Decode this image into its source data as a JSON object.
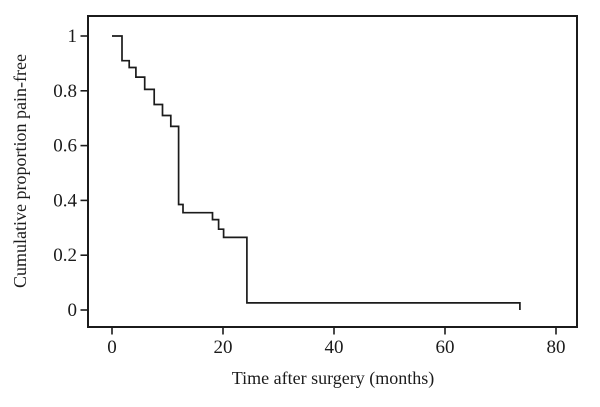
{
  "figure": {
    "background": "#ffffff",
    "line_color": "#1b1b1b",
    "text_color": "#1b1b1b"
  },
  "chart_data": {
    "type": "line",
    "subtype": "kaplan-meier-step",
    "title": "",
    "xlabel": "Time after surgery (months)",
    "ylabel": "Cumulative proportion pain-free",
    "xlim": [
      -4.3,
      83.8
    ],
    "ylim": [
      -0.06,
      1.07
    ],
    "grid": false,
    "legend": null,
    "x_ticks": [
      0,
      20,
      40,
      60,
      80
    ],
    "x_tick_labels": [
      "0",
      "20",
      "40",
      "60",
      "80"
    ],
    "y_ticks": [
      0,
      0.2,
      0.4,
      0.6,
      0.8,
      1
    ],
    "y_tick_labels": [
      "0",
      "0.2",
      "0.4",
      "0.6",
      "0.8",
      "1"
    ],
    "series": [
      {
        "name": "cumulative-proportion-pain-free",
        "start": {
          "t": 0,
          "v": 1.0
        },
        "steps": [
          [
            1.8,
            0.91
          ],
          [
            3.1,
            0.885
          ],
          [
            4.3,
            0.85
          ],
          [
            5.9,
            0.805
          ],
          [
            7.6,
            0.75
          ],
          [
            9.1,
            0.71
          ],
          [
            10.6,
            0.67
          ],
          [
            12.0,
            0.385
          ],
          [
            12.8,
            0.355
          ],
          [
            18.1,
            0.33
          ],
          [
            19.2,
            0.295
          ],
          [
            20.1,
            0.265
          ],
          [
            24.3,
            0.026
          ],
          [
            73.5,
            0
          ]
        ]
      }
    ]
  }
}
